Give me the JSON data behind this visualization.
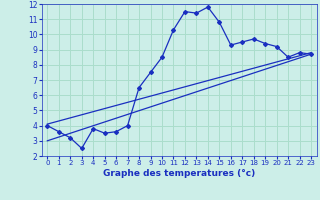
{
  "title": "Graphe des temperatures (°c)",
  "background_color": "#cceee8",
  "line_color": "#1a2fc0",
  "grid_color": "#aaddcc",
  "xlim": [
    -0.5,
    23.5
  ],
  "ylim": [
    2,
    12
  ],
  "xticks": [
    0,
    1,
    2,
    3,
    4,
    5,
    6,
    7,
    8,
    9,
    10,
    11,
    12,
    13,
    14,
    15,
    16,
    17,
    18,
    19,
    20,
    21,
    22,
    23
  ],
  "yticks": [
    2,
    3,
    4,
    5,
    6,
    7,
    8,
    9,
    10,
    11,
    12
  ],
  "curve1_x": [
    0,
    1,
    2,
    3,
    4,
    5,
    6,
    7,
    8,
    9,
    10,
    11,
    12,
    13,
    14,
    15,
    16,
    17,
    18,
    19,
    20,
    21,
    22,
    23
  ],
  "curve1_y": [
    4.0,
    3.6,
    3.2,
    2.5,
    3.8,
    3.5,
    3.6,
    4.0,
    6.5,
    7.5,
    8.5,
    10.3,
    11.5,
    11.4,
    11.8,
    10.8,
    9.3,
    9.5,
    9.7,
    9.4,
    9.2,
    8.5,
    8.8,
    8.7
  ],
  "curve2_x": [
    0,
    23
  ],
  "curve2_y": [
    4.1,
    8.8
  ],
  "curve3_x": [
    0,
    23
  ],
  "curve3_y": [
    3.0,
    8.7
  ]
}
